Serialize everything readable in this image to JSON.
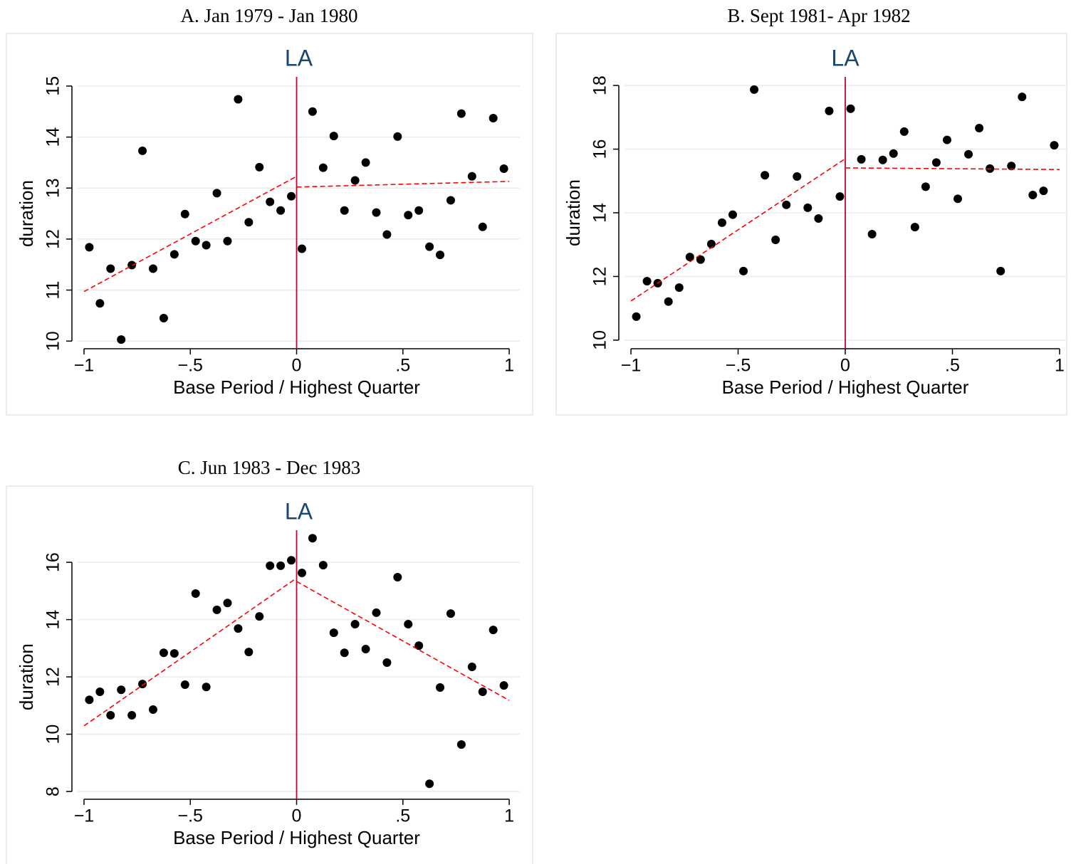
{
  "chart_data": [
    {
      "type": "scatter",
      "title": "A. Jan 1979 - Jan 1980",
      "subtitle": "LA",
      "x_label": "Base Period / Highest Quarter",
      "y_label": "duration",
      "x": [
        -0.975,
        -0.925,
        -0.875,
        -0.825,
        -0.775,
        -0.725,
        -0.675,
        -0.625,
        -0.575,
        -0.525,
        -0.475,
        -0.425,
        -0.375,
        -0.325,
        -0.275,
        -0.225,
        -0.175,
        -0.125,
        -0.075,
        -0.025,
        0.025,
        0.075,
        0.125,
        0.175,
        0.225,
        0.275,
        0.325,
        0.375,
        0.425,
        0.475,
        0.525,
        0.575,
        0.625,
        0.675,
        0.725,
        0.775,
        0.825,
        0.875,
        0.925,
        0.975
      ],
      "series": [
        {
          "color": "#000000",
          "values": [
            11.84,
            10.74,
            11.42,
            10.03,
            11.49,
            13.73,
            11.42,
            10.45,
            11.7,
            12.49,
            11.96,
            11.88,
            12.9,
            11.96,
            14.74,
            12.33,
            13.41,
            12.73,
            12.56,
            12.84,
            11.81,
            14.5,
            13.4,
            14.02,
            12.56,
            13.15,
            13.5,
            12.52,
            12.09,
            14.01,
            12.47,
            12.56,
            11.85,
            11.69,
            12.76,
            14.46,
            13.23,
            12.24,
            14.37,
            13.38
          ]
        }
      ],
      "fit_lines": [
        {
          "x": [
            -1,
            0
          ],
          "y": [
            10.97,
            13.23
          ]
        },
        {
          "x": [
            0,
            1
          ],
          "y": [
            13.02,
            13.13
          ]
        }
      ],
      "fit_color": "#ff0000",
      "cutoff_x": 0,
      "cutoff_color": "#c10534",
      "xlim": [
        -1.03,
        1.05
      ],
      "ylim": [
        9.85,
        15.18
      ],
      "xticks": [
        {
          "value": -1,
          "label": "−1"
        },
        {
          "value": -0.5,
          "label": "−.5"
        },
        0,
        {
          "value": 0.5,
          "label": ".5"
        },
        1
      ],
      "yticks": [
        10,
        11,
        12,
        13,
        14,
        15
      ],
      "grid": true
    },
    {
      "type": "scatter",
      "title": "B. Sept 1981- Apr 1982",
      "subtitle": "LA",
      "x_label": "Base Period / Highest Quarter",
      "y_label": "duration",
      "x": [
        -0.975,
        -0.925,
        -0.875,
        -0.825,
        -0.775,
        -0.725,
        -0.675,
        -0.625,
        -0.575,
        -0.525,
        -0.475,
        -0.425,
        -0.375,
        -0.325,
        -0.275,
        -0.225,
        -0.175,
        -0.125,
        -0.075,
        -0.025,
        0.025,
        0.075,
        0.125,
        0.175,
        0.225,
        0.275,
        0.325,
        0.375,
        0.425,
        0.475,
        0.525,
        0.575,
        0.625,
        0.675,
        0.725,
        0.775,
        0.825,
        0.875,
        0.925,
        0.975
      ],
      "series": [
        {
          "color": "#000000",
          "values": [
            10.74,
            11.85,
            11.79,
            11.21,
            11.65,
            12.61,
            12.53,
            13.02,
            13.69,
            13.94,
            12.17,
            17.87,
            15.18,
            13.15,
            14.25,
            15.14,
            14.16,
            13.82,
            17.2,
            14.51,
            17.27,
            15.68,
            13.33,
            15.66,
            15.86,
            16.55,
            13.55,
            14.82,
            15.58,
            16.29,
            14.44,
            15.84,
            16.66,
            15.39,
            12.17,
            15.47,
            17.64,
            14.56,
            14.69,
            16.12
          ]
        }
      ],
      "fit_lines": [
        {
          "x": [
            -1,
            0
          ],
          "y": [
            11.23,
            15.7
          ]
        },
        {
          "x": [
            0,
            1
          ],
          "y": [
            15.41,
            15.36
          ]
        }
      ],
      "fit_color": "#ff0000",
      "cutoff_x": 0,
      "cutoff_color": "#c10534",
      "xlim": [
        -1.03,
        1.03
      ],
      "ylim": [
        9.73,
        18.27
      ],
      "xticks": [
        {
          "value": -1,
          "label": "−1"
        },
        {
          "value": -0.5,
          "label": "−.5"
        },
        0,
        {
          "value": 0.5,
          "label": ".5"
        },
        1
      ],
      "yticks": [
        10,
        12,
        14,
        16,
        18
      ],
      "grid": true
    },
    {
      "type": "scatter",
      "title": "C. Jun 1983 - Dec 1983",
      "subtitle": "LA",
      "x_label": "Base Period / Highest Quarter",
      "y_label": "duration",
      "x": [
        -0.975,
        -0.925,
        -0.875,
        -0.825,
        -0.775,
        -0.725,
        -0.675,
        -0.625,
        -0.575,
        -0.525,
        -0.475,
        -0.425,
        -0.375,
        -0.325,
        -0.275,
        -0.225,
        -0.175,
        -0.125,
        -0.075,
        -0.025,
        0.025,
        0.075,
        0.125,
        0.175,
        0.225,
        0.275,
        0.325,
        0.375,
        0.425,
        0.475,
        0.525,
        0.575,
        0.625,
        0.675,
        0.725,
        0.775,
        0.825,
        0.875,
        0.925,
        0.975
      ],
      "series": [
        {
          "color": "#000000",
          "values": [
            11.2,
            11.48,
            10.66,
            11.55,
            10.66,
            11.75,
            10.86,
            12.84,
            12.82,
            11.73,
            14.91,
            11.65,
            14.34,
            14.58,
            13.69,
            12.87,
            14.11,
            15.88,
            15.88,
            16.07,
            15.63,
            16.84,
            15.9,
            13.54,
            12.84,
            13.84,
            12.97,
            14.24,
            12.5,
            15.48,
            13.84,
            13.09,
            8.27,
            11.63,
            14.21,
            9.64,
            12.35,
            11.48,
            13.64,
            11.7
          ]
        }
      ],
      "fit_lines": [
        {
          "x": [
            -1,
            0
          ],
          "y": [
            10.29,
            15.45
          ]
        },
        {
          "x": [
            0,
            1
          ],
          "y": [
            15.33,
            11.18
          ]
        }
      ],
      "fit_color": "#ff0000",
      "cutoff_x": 0,
      "cutoff_color": "#c10534",
      "xlim": [
        -1.03,
        1.05
      ],
      "ylim": [
        7.73,
        17.12
      ],
      "xticks": [
        {
          "value": -1,
          "label": "−1"
        },
        {
          "value": -0.5,
          "label": "−.5"
        },
        0,
        {
          "value": 0.5,
          "label": ".5"
        },
        1
      ],
      "yticks": [
        8,
        10,
        12,
        14,
        16
      ],
      "grid": true
    }
  ]
}
